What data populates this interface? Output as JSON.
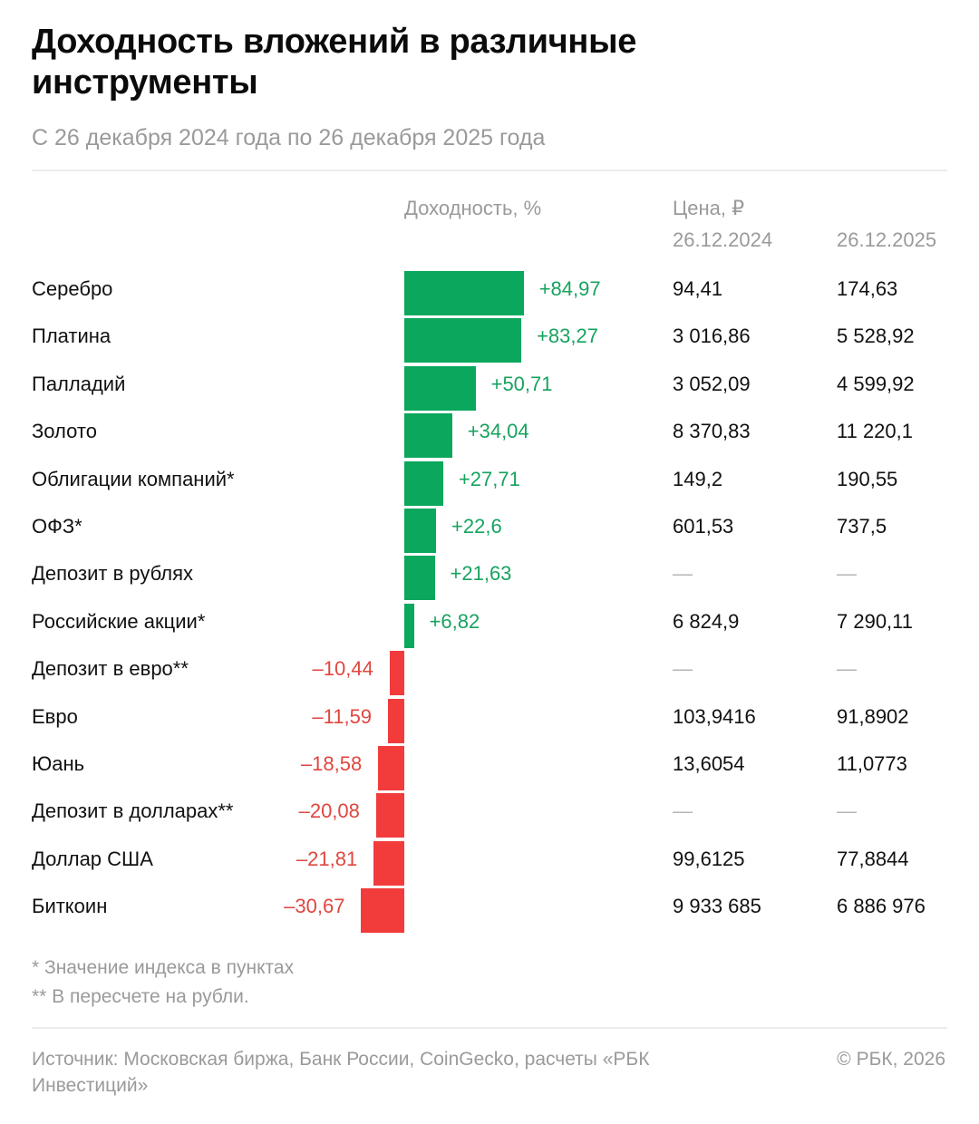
{
  "title": "Доходность вложений в различные инструменты",
  "subtitle": "С 26 декабря 2024 года по 26 декабря 2025 года",
  "headers": {
    "yield": "Доходность, %",
    "price": "Цена, ₽",
    "date1": "26.12.2024",
    "date2": "26.12.2025"
  },
  "colors": {
    "positive": "#0aa75d",
    "negative": "#f23b3b",
    "positive_text": "#17a35f",
    "negative_text": "#e0463f"
  },
  "chart_data": {
    "type": "bar",
    "orientation": "horizontal",
    "categories": [
      "Серебро",
      "Платина",
      "Палладий",
      "Золото",
      "Облигации компаний*",
      "ОФЗ*",
      "Депозит в рублях",
      "Российские акции*",
      "Депозит в евро**",
      "Евро",
      "Юань",
      "Депозит в долларах**",
      "Доллар США",
      "Биткоин"
    ],
    "values": [
      84.97,
      83.27,
      50.71,
      34.04,
      27.71,
      22.6,
      21.63,
      6.82,
      -10.44,
      -11.59,
      -18.58,
      -20.08,
      -21.81,
      -30.67
    ],
    "labels": [
      "+84,97",
      "+83,27",
      "+50,71",
      "+34,04",
      "+27,71",
      "+22,6",
      "+21,63",
      "+6,82",
      "–10,44",
      "–11,59",
      "–18,58",
      "–20,08",
      "–21,81",
      "–30,67"
    ],
    "price_2024": [
      "94,41",
      "3 016,86",
      "3 052,09",
      "8 370,83",
      "149,2",
      "601,53",
      "—",
      "6 824,9",
      "—",
      "103,9416",
      "13,6054",
      "—",
      "99,6125",
      "9 933 685"
    ],
    "price_2025": [
      "174,63",
      "5 528,92",
      "4 599,92",
      "11 220,1",
      "190,55",
      "737,5",
      "—",
      "7 290,11",
      "—",
      "91,8902",
      "11,0773",
      "—",
      "77,8844",
      "6 886 976"
    ]
  },
  "notes": {
    "note1": "* Значение индекса в пунктах",
    "note2": "** В пересчете на рубли."
  },
  "footer": {
    "source": "Источник: Московская биржа, Банк России, CoinGecko, расчеты «РБК Инвестиций»",
    "copyright": "© РБК, 2026"
  }
}
